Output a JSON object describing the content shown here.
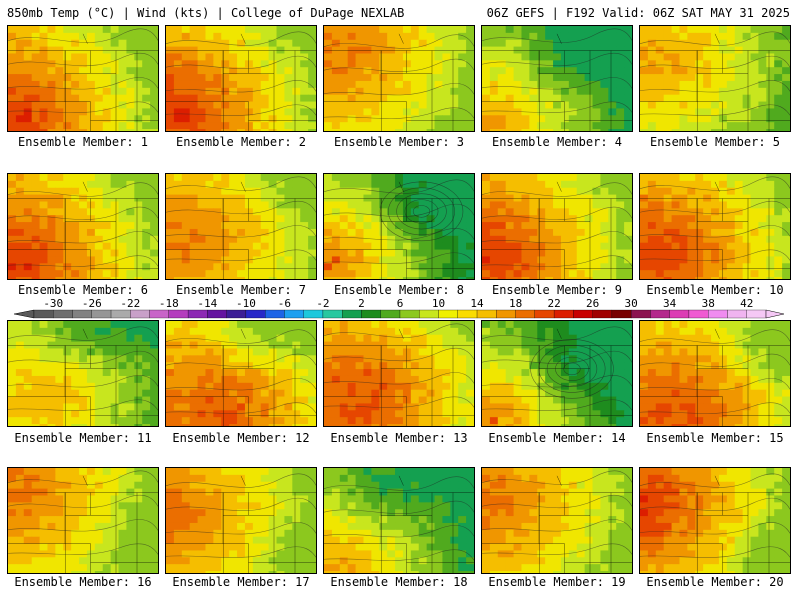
{
  "header": {
    "left": "850mb Temp (°C) | Wind (kts) | College of DuPage NEXLAB",
    "right": "06Z GEFS | F192 Valid: 06Z SAT MAY 31 2025"
  },
  "colors": {
    "background": "#ffffff",
    "border": "#000000"
  },
  "legend": {
    "ticks": [
      "-30",
      "-26",
      "-22",
      "-18",
      "-14",
      "-10",
      "-6",
      "-2",
      "2",
      "6",
      "10",
      "14",
      "18",
      "22",
      "26",
      "30",
      "34",
      "38",
      "42"
    ],
    "bins": [
      "#5a5a5a",
      "#6e6e6e",
      "#828282",
      "#969696",
      "#aaaaaa",
      "#c8a0c8",
      "#c864c8",
      "#b43cbe",
      "#8c28b4",
      "#6414a0",
      "#3c1e96",
      "#2828c8",
      "#1e64e6",
      "#1ea0f0",
      "#1ec8dc",
      "#28c8a0",
      "#14a050",
      "#1e8c1e",
      "#50aa1e",
      "#8cc81e",
      "#c8e61e",
      "#f0f000",
      "#fadc00",
      "#f5be00",
      "#f09600",
      "#eb6e00",
      "#e64600",
      "#dc1e00",
      "#c80000",
      "#a00000",
      "#780000",
      "#8c1450",
      "#b4288c",
      "#dc3cb4",
      "#f05ad2",
      "#f08cf0",
      "#f0b4f0",
      "#f5c8f5"
    ]
  },
  "members": [
    {
      "label": "Ensemble Member: 1"
    },
    {
      "label": "Ensemble Member: 2"
    },
    {
      "label": "Ensemble Member: 3"
    },
    {
      "label": "Ensemble Member: 4"
    },
    {
      "label": "Ensemble Member: 5"
    },
    {
      "label": "Ensemble Member: 6"
    },
    {
      "label": "Ensemble Member: 7"
    },
    {
      "label": "Ensemble Member: 8"
    },
    {
      "label": "Ensemble Member: 9"
    },
    {
      "label": "Ensemble Member: 10"
    },
    {
      "label": "Ensemble Member: 11"
    },
    {
      "label": "Ensemble Member: 12"
    },
    {
      "label": "Ensemble Member: 13"
    },
    {
      "label": "Ensemble Member: 14"
    },
    {
      "label": "Ensemble Member: 15"
    },
    {
      "label": "Ensemble Member: 16"
    },
    {
      "label": "Ensemble Member: 17"
    },
    {
      "label": "Ensemble Member: 18"
    },
    {
      "label": "Ensemble Member: 19"
    },
    {
      "label": "Ensemble Member: 20"
    }
  ]
}
